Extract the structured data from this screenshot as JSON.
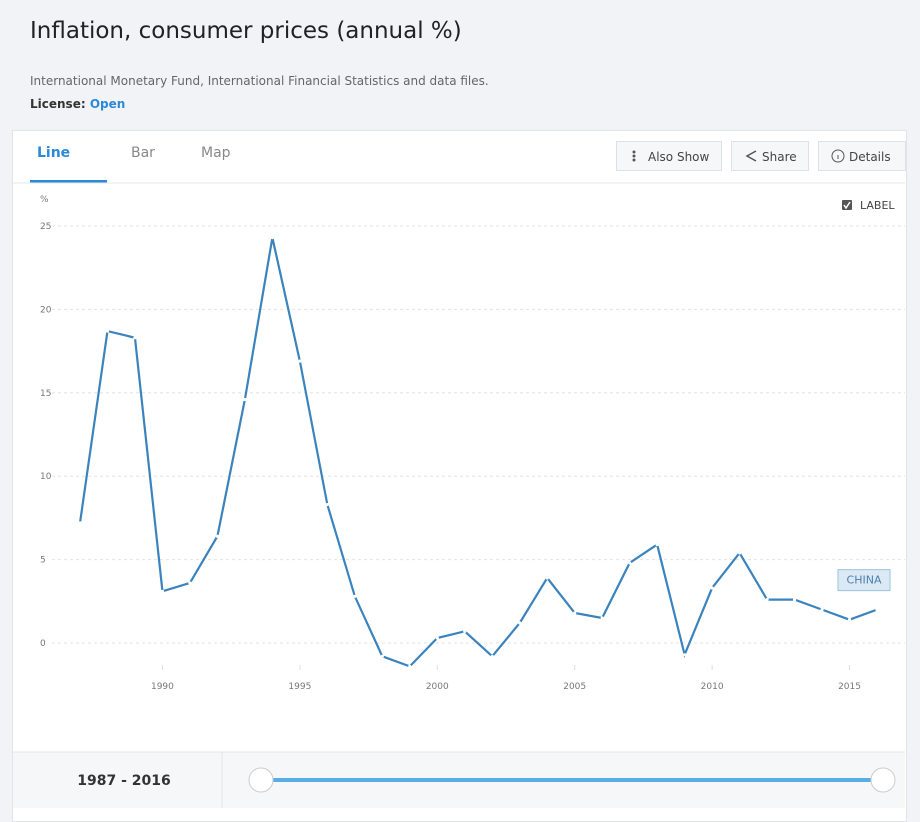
{
  "header": {
    "title": "Inflation, consumer prices (annual %)",
    "subtitle": "International Monetary Fund, International Financial Statistics and data files.",
    "license_label": "License:",
    "license_value": "Open"
  },
  "tabs": [
    "Line",
    "Bar",
    "Map"
  ],
  "buttons": [
    "Also Show",
    "Share",
    "Details"
  ],
  "label_toggle": "LABEL",
  "range_label": "1987 - 2016",
  "chart_data": {
    "type": "line",
    "y_unit": "%",
    "x": [
      1987,
      1988,
      1989,
      1990,
      1991,
      1992,
      1993,
      1994,
      1995,
      1996,
      1997,
      1998,
      1999,
      2000,
      2001,
      2002,
      2003,
      2004,
      2005,
      2006,
      2007,
      2008,
      2009,
      2010,
      2011,
      2012,
      2013,
      2014,
      2015,
      2016
    ],
    "series": [
      {
        "name": "CHINA",
        "color": "#3a83bd",
        "values": [
          7.2,
          18.7,
          18.3,
          3.1,
          3.6,
          6.4,
          14.6,
          24.3,
          16.9,
          8.3,
          2.8,
          -0.8,
          -1.4,
          0.3,
          0.7,
          -0.8,
          1.2,
          3.9,
          1.8,
          1.5,
          4.8,
          5.9,
          -0.7,
          3.3,
          5.4,
          2.6,
          2.6,
          2.0,
          1.4,
          2.0
        ]
      }
    ],
    "xlim": [
      1987,
      2016
    ],
    "ylim": [
      -2.5,
      26
    ],
    "xticks": [
      1990,
      1995,
      2000,
      2005,
      2010,
      2015
    ],
    "yticks": [
      0,
      5,
      10,
      15,
      20,
      25
    ],
    "grid": true
  }
}
